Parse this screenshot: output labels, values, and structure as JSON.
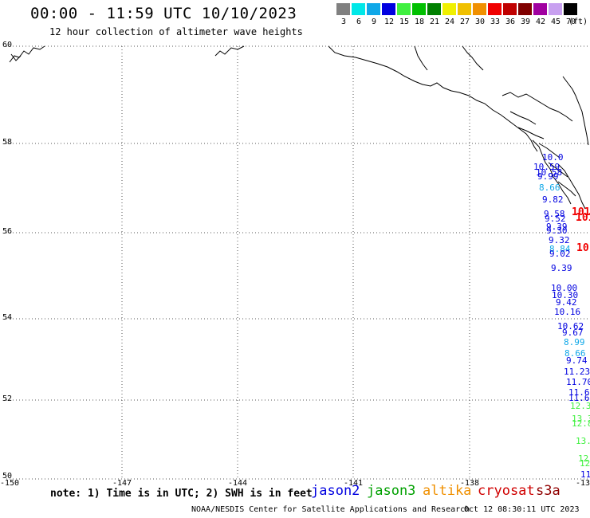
{
  "header": {
    "title": "00:00 - 11:59 UTC 10/10/2023",
    "subtitle": "12 hour collection of altimeter wave heights"
  },
  "scale": {
    "bins": [
      {
        "label": "3",
        "color": "#808080"
      },
      {
        "label": "6",
        "color": "#00e8e8"
      },
      {
        "label": "9",
        "color": "#10a8e8"
      },
      {
        "label": "12",
        "color": "#0000e0"
      },
      {
        "label": "15",
        "color": "#40f040"
      },
      {
        "label": "18",
        "color": "#00c000"
      },
      {
        "label": "21",
        "color": "#008000"
      },
      {
        "label": "24",
        "color": "#f0f000"
      },
      {
        "label": "27",
        "color": "#f0c000"
      },
      {
        "label": "30",
        "color": "#f09000"
      },
      {
        "label": "33",
        "color": "#f00000"
      },
      {
        "label": "36",
        "color": "#c00000"
      },
      {
        "label": "39",
        "color": "#800000"
      },
      {
        "label": "42",
        "color": "#a000a0"
      },
      {
        "label": "45",
        "color": "#c8a0f0"
      },
      {
        "label": "70",
        "color": "#000000"
      }
    ],
    "unit": "(ft)"
  },
  "axes": {
    "lat_labels": [
      "60",
      "58",
      "56",
      "54",
      "52",
      "50"
    ],
    "lon_labels": [
      "-150",
      "-147",
      "-144",
      "-141",
      "-138",
      "-13"
    ]
  },
  "observations": [
    {
      "v": "10.0",
      "c": "#0000e0"
    },
    {
      "v": "10.59",
      "c": "#0000e0"
    },
    {
      "v": "10.58",
      "c": "#0000e0"
    },
    {
      "v": "9.99",
      "c": "#0000e0"
    },
    {
      "v": "8.66",
      "c": "#10a8e8"
    },
    {
      "v": "9.82",
      "c": "#0000e0"
    },
    {
      "v": "9.58",
      "c": "#0000e0"
    },
    {
      "v": "9.52",
      "c": "#0000e0"
    },
    {
      "v": "9.39",
      "c": "#0000e0"
    },
    {
      "v": "9.30",
      "c": "#0000e0"
    },
    {
      "v": "9.32",
      "c": "#0000e0"
    },
    {
      "v": "8.84",
      "c": "#10a8e8"
    },
    {
      "v": "9.02",
      "c": "#0000e0"
    },
    {
      "v": "9.39",
      "c": "#0000e0"
    },
    {
      "v": "10.00",
      "c": "#0000e0"
    },
    {
      "v": "10.30",
      "c": "#0000e0"
    },
    {
      "v": "9.42",
      "c": "#0000e0"
    },
    {
      "v": "10.16",
      "c": "#0000e0"
    },
    {
      "v": "10.62",
      "c": "#0000e0"
    },
    {
      "v": "9.67",
      "c": "#0000e0"
    },
    {
      "v": "8.99",
      "c": "#10a8e8"
    },
    {
      "v": "8.66",
      "c": "#10a8e8"
    },
    {
      "v": "9.74",
      "c": "#0000e0"
    },
    {
      "v": "11.23",
      "c": "#0000e0"
    },
    {
      "v": "11.70",
      "c": "#0000e0"
    },
    {
      "v": "11.67",
      "c": "#0000e0"
    },
    {
      "v": "11.64",
      "c": "#0000e0"
    },
    {
      "v": "12.3",
      "c": "#40f040"
    },
    {
      "v": "13.3",
      "c": "#40f040"
    },
    {
      "v": "12.8",
      "c": "#40f040"
    },
    {
      "v": "13.",
      "c": "#40f040"
    },
    {
      "v": "12",
      "c": "#40f040"
    },
    {
      "v": "12",
      "c": "#40f040"
    },
    {
      "v": "11",
      "c": "#0000e0"
    },
    {
      "v": "101",
      "c": "#f00000"
    },
    {
      "v": "101",
      "c": "#f00000"
    },
    {
      "v": "10",
      "c": "#f00000"
    }
  ],
  "footer": {
    "note": "note: 1) Time is in UTC; 2) SWH is in feet",
    "legend": [
      {
        "name": "jason2",
        "color": "#0000e0"
      },
      {
        "name": "jason3",
        "color": "#00a000"
      },
      {
        "name": "altika",
        "color": "#f09000"
      },
      {
        "name": "cryosat",
        "color": "#d00000"
      },
      {
        "name": "s3a",
        "color": "#900000"
      }
    ],
    "credit": "NOAA/NESDIS Center for Satellite Applications and Research",
    "timestamp": "Oct 12 08:30:11 UTC 2023"
  }
}
